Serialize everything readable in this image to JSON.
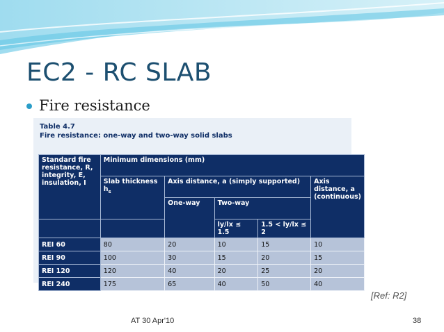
{
  "slide": {
    "title": "EC2 - RC SLAB",
    "bullet": "Fire resistance",
    "reference": "[Ref: R2]",
    "footer_left": "AT 30 Apr'10",
    "page_number": "38"
  },
  "table": {
    "caption_line1": "Table 4.7",
    "caption_line2": "Fire resistance: one-way and two-way solid slabs",
    "header_std": "Standard fire resistance, R, integrity, E, insulation, I",
    "header_min": "Minimum dimensions (mm)",
    "header_slab_thickness": "Slab thickness h",
    "header_slab_thickness_sub": "s",
    "header_axis_simply": "Axis distance, a (simply supported)",
    "header_axis_continuous": "Axis distance, a (continuous)",
    "header_one_way": "One-way",
    "header_two_way": "Two-way",
    "header_ratio_1": "ly/lx ≤ 1.5",
    "header_ratio_2": "1.5 < ly/lx ≤ 2",
    "rows": [
      {
        "label": "REI 60",
        "values": [
          "80",
          "20",
          "10",
          "15",
          "10"
        ]
      },
      {
        "label": "REI 90",
        "values": [
          "100",
          "30",
          "15",
          "20",
          "15"
        ]
      },
      {
        "label": "REI 120",
        "values": [
          "120",
          "40",
          "20",
          "25",
          "20"
        ]
      },
      {
        "label": "REI 240",
        "values": [
          "175",
          "65",
          "40",
          "50",
          "40"
        ]
      }
    ]
  },
  "colors": {
    "title": "#1c4f70",
    "table_header": "#0f2e66",
    "table_cell": "#b6c3d9",
    "panel_bg": "#eaf0f7",
    "bullet": "#2a9dc8"
  }
}
